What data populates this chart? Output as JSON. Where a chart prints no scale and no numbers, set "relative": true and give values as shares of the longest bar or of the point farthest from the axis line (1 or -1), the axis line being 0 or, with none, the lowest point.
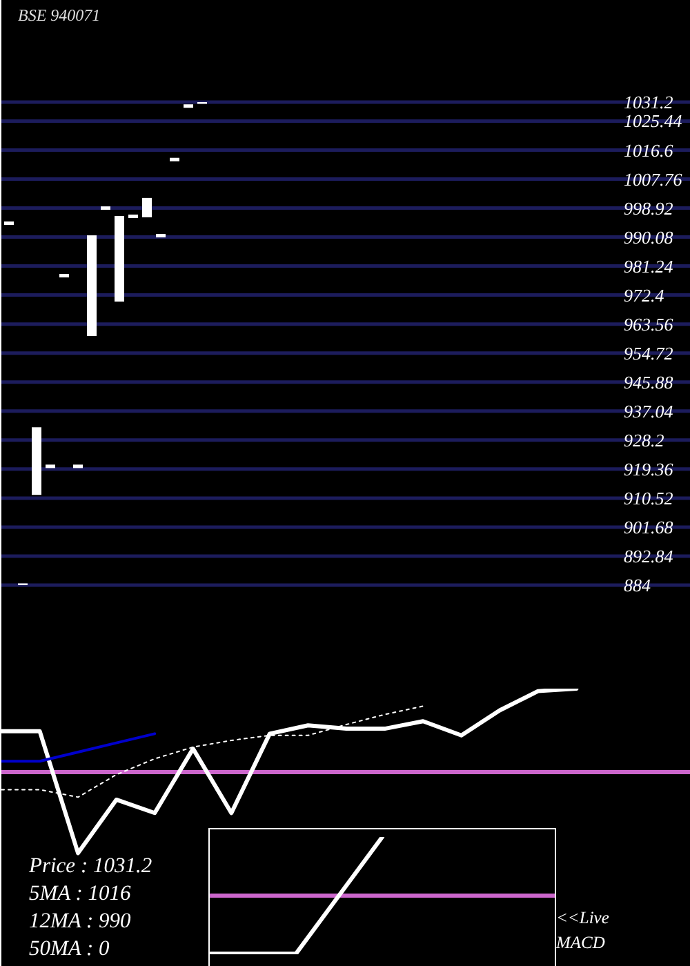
{
  "chart_data": [
    {
      "type": "candlestick",
      "title": "BSE 940071",
      "categories": [
        null,
        null,
        null,
        null,
        null,
        null,
        null,
        null,
        null,
        null,
        null,
        null,
        null,
        null,
        null,
        null,
        null,
        null,
        null,
        null,
        null,
        null,
        null,
        null,
        null,
        null,
        null,
        null,
        null,
        null,
        null,
        null,
        null,
        null,
        null,
        null,
        null,
        null,
        null,
        null,
        null,
        null,
        null,
        null,
        null
      ],
      "ohlc": [
        [
          994.3,
          994.3,
          994.3,
          994.3
        ],
        [
          884,
          884,
          884,
          884
        ],
        [
          911.5,
          932.1,
          911.5,
          932.1
        ],
        [
          920.2,
          920.2,
          920.2,
          920.2
        ],
        [
          978.3,
          978.3,
          978.3,
          978.3
        ],
        [
          920.2,
          920.2,
          920.2,
          920.2
        ],
        [
          959.9,
          990.6,
          959.9,
          990.6
        ],
        [
          998.9,
          998.9,
          998.9,
          998.9
        ],
        [
          970.4,
          996.5,
          970.4,
          996.5
        ],
        [
          996.4,
          996.4,
          996.4,
          996.4
        ],
        [
          996.1,
          1002,
          996.1,
          1002
        ],
        [
          990.5,
          990.5,
          990.5,
          990.5
        ],
        [
          1013.7,
          1013.7,
          1013.7,
          1013.7
        ],
        [
          1030,
          1030,
          1030,
          1030
        ],
        [
          1031.2,
          1031.2,
          1031.2,
          1031.2
        ],
        null,
        null,
        null,
        null,
        null,
        null,
        null,
        null,
        null,
        null,
        null,
        null,
        null,
        null,
        null,
        null,
        null,
        null,
        null,
        null,
        null,
        null,
        null,
        null,
        null,
        null,
        null,
        null,
        null,
        null
      ],
      "color": "#ffffff",
      "ylim": [
        884,
        1031.2
      ],
      "yticks": [
        884,
        892.84,
        901.68,
        910.52,
        919.36,
        928.2,
        937.04,
        945.88,
        954.72,
        963.56,
        972.4,
        981.24,
        990.08,
        998.92,
        1007.76,
        1016.6,
        1025.44,
        1031.2
      ],
      "grid": "y",
      "tick_labels": "y"
    },
    {
      "type": "line",
      "relative": true,
      "categories": [
        null,
        null,
        null,
        null,
        null,
        null,
        null,
        null,
        null,
        null,
        null,
        null,
        null,
        null,
        null,
        null,
        null,
        null,
        null
      ],
      "series": [
        {
          "color": "#ffffff",
          "values": [
            0.49,
            0.49,
            -0.97,
            -0.33,
            -0.49,
            0.28,
            -0.49,
            0.46,
            0.56,
            0.52,
            0.52,
            0.61,
            0.44,
            0.74,
            0.97,
            1,
            null,
            null,
            null
          ]
        },
        {
          "color": "#0000cc",
          "values": [
            0.13,
            0.13,
            0.24,
            0.35,
            0.46,
            null,
            null,
            null,
            null,
            null,
            null,
            null,
            null,
            null,
            null,
            null,
            null,
            null,
            null
          ]
        },
        {
          "color": "#ffffff",
          "line_style": "dotted",
          "values": [
            -0.21,
            -0.21,
            -0.3,
            -0.03,
            0.16,
            0.3,
            0.38,
            0.44,
            0.44,
            0.57,
            0.69,
            0.79,
            null,
            null,
            null,
            null,
            null,
            null,
            null
          ]
        }
      ],
      "ref_lines": [
        {
          "axis": "y",
          "value": 0,
          "color": "#cc66cc"
        }
      ],
      "tick_labels": false,
      "annotations": [
        "Price : 1031.2",
        "5MA : 1016",
        "12MA : 990",
        "50MA : 0"
      ]
    },
    {
      "type": "line",
      "relative": true,
      "categories": [
        null,
        null,
        null,
        null,
        null
      ],
      "values": [
        -0.99,
        -0.99,
        1,
        null,
        null
      ],
      "color": "#ffffff",
      "ref_lines": [
        {
          "axis": "y",
          "value": 0,
          "color": "#cc66cc"
        }
      ],
      "tick_labels": false,
      "annotations": [
        "<<Live MACD"
      ]
    }
  ]
}
